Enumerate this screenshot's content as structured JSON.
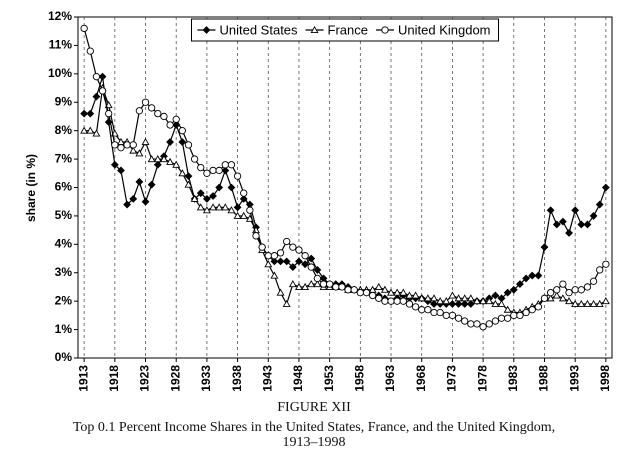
{
  "chart_data": {
    "type": "line",
    "caption_label": "FIGURE XII",
    "title": "Top 0.1 Percent Income Shares in the United States, France, and the United Kingdom, 1913–1998",
    "y_label": "share (in %)",
    "x": [
      1913,
      1914,
      1915,
      1916,
      1917,
      1918,
      1919,
      1920,
      1921,
      1922,
      1923,
      1924,
      1925,
      1926,
      1927,
      1928,
      1929,
      1930,
      1931,
      1932,
      1933,
      1934,
      1935,
      1936,
      1937,
      1938,
      1939,
      1940,
      1941,
      1942,
      1943,
      1944,
      1945,
      1946,
      1947,
      1948,
      1949,
      1950,
      1951,
      1952,
      1953,
      1954,
      1955,
      1956,
      1957,
      1958,
      1959,
      1960,
      1961,
      1962,
      1963,
      1964,
      1965,
      1966,
      1967,
      1968,
      1969,
      1970,
      1971,
      1972,
      1973,
      1974,
      1975,
      1976,
      1977,
      1978,
      1979,
      1980,
      1981,
      1982,
      1983,
      1984,
      1985,
      1986,
      1987,
      1988,
      1989,
      1990,
      1991,
      1992,
      1993,
      1994,
      1995,
      1996,
      1997,
      1998
    ],
    "series": [
      {
        "name": "United States",
        "color": "#000000",
        "marker": "diamond-filled",
        "values": [
          8.6,
          8.6,
          9.2,
          9.9,
          8.3,
          6.8,
          6.6,
          5.4,
          5.6,
          6.2,
          5.5,
          6.1,
          6.8,
          7.1,
          7.6,
          8.2,
          7.6,
          6.4,
          5.6,
          5.8,
          5.6,
          5.7,
          6.0,
          6.6,
          6.0,
          5.3,
          5.6,
          5.4,
          4.6,
          3.9,
          3.6,
          3.4,
          3.4,
          3.4,
          3.2,
          3.4,
          3.3,
          3.5,
          3.1,
          2.8,
          2.6,
          2.6,
          2.6,
          2.5,
          2.4,
          2.3,
          2.3,
          2.2,
          2.2,
          2.1,
          2.0,
          2.1,
          2.2,
          2.1,
          2.1,
          2.1,
          2.0,
          1.9,
          1.9,
          1.9,
          1.9,
          1.9,
          1.9,
          1.9,
          2.0,
          2.0,
          2.1,
          2.2,
          2.1,
          2.3,
          2.4,
          2.6,
          2.8,
          2.9,
          2.9,
          3.9,
          5.2,
          4.7,
          4.8,
          4.4,
          5.2,
          4.7,
          4.7,
          5.0,
          5.4,
          6.0
        ]
      },
      {
        "name": "France",
        "color": "#000000",
        "marker": "triangle-open",
        "values": [
          8.0,
          8.0,
          7.9,
          9.5,
          8.9,
          7.9,
          7.6,
          7.6,
          7.3,
          7.2,
          7.6,
          7.0,
          7.0,
          7.0,
          6.9,
          6.8,
          6.5,
          6.1,
          5.6,
          5.3,
          5.2,
          5.3,
          5.3,
          5.3,
          5.2,
          5.0,
          5.0,
          4.9,
          4.5,
          3.8,
          3.3,
          2.9,
          2.3,
          1.9,
          2.6,
          2.5,
          2.5,
          2.6,
          2.6,
          2.5,
          2.5,
          2.5,
          2.5,
          2.4,
          2.4,
          2.4,
          2.4,
          2.4,
          2.5,
          2.4,
          2.3,
          2.3,
          2.3,
          2.2,
          2.2,
          2.1,
          2.1,
          2.1,
          2.0,
          2.0,
          2.2,
          2.1,
          2.1,
          2.1,
          2.0,
          2.0,
          2.0,
          1.9,
          1.9,
          1.7,
          1.6,
          1.6,
          1.7,
          1.8,
          1.9,
          2.1,
          2.1,
          2.2,
          2.1,
          2.0,
          1.9,
          1.9,
          1.9,
          1.9,
          1.9,
          2.0
        ]
      },
      {
        "name": "United Kingdom",
        "color": "#000000",
        "marker": "circle-open",
        "values": [
          11.6,
          10.8,
          9.9,
          9.4,
          8.6,
          7.5,
          7.4,
          7.5,
          7.5,
          8.7,
          9.0,
          8.8,
          8.6,
          8.5,
          8.2,
          8.4,
          8.0,
          7.5,
          7.0,
          6.7,
          6.5,
          6.6,
          6.6,
          6.8,
          6.8,
          6.4,
          5.8,
          5.2,
          4.3,
          3.9,
          3.6,
          3.6,
          3.7,
          4.1,
          3.9,
          3.8,
          3.6,
          3.2,
          2.8,
          2.6,
          2.6,
          2.5,
          2.5,
          2.4,
          2.4,
          2.3,
          2.3,
          2.2,
          2.1,
          2.0,
          2.0,
          2.0,
          2.0,
          1.9,
          1.8,
          1.7,
          1.7,
          1.6,
          1.6,
          1.5,
          1.5,
          1.4,
          1.3,
          1.2,
          1.2,
          1.1,
          1.2,
          1.3,
          1.4,
          1.4,
          1.5,
          1.5,
          1.6,
          1.7,
          1.8,
          2.1,
          2.3,
          2.4,
          2.6,
          2.3,
          2.4,
          2.4,
          2.5,
          2.7,
          3.1,
          3.3
        ]
      }
    ],
    "xlim": [
      1912,
      1999
    ],
    "xticks": [
      1913,
      1918,
      1923,
      1928,
      1933,
      1938,
      1943,
      1948,
      1953,
      1958,
      1963,
      1968,
      1973,
      1978,
      1983,
      1988,
      1993,
      1998
    ],
    "ylim": [
      0,
      12
    ],
    "yticks": [
      {
        "value": 0,
        "label": "0%"
      },
      {
        "value": 1,
        "label": "1%"
      },
      {
        "value": 2,
        "label": "2%"
      },
      {
        "value": 3,
        "label": "3%"
      },
      {
        "value": 4,
        "label": "4%"
      },
      {
        "value": 5,
        "label": "5%"
      },
      {
        "value": 6,
        "label": "6%"
      },
      {
        "value": 7,
        "label": "7%"
      },
      {
        "value": 8,
        "label": "8%"
      },
      {
        "value": 9,
        "label": "9%"
      },
      {
        "value": 10,
        "label": "10%"
      },
      {
        "value": 11,
        "label": "11%"
      },
      {
        "value": 12,
        "label": "12%"
      }
    ],
    "grid": "x",
    "legend": "top"
  }
}
